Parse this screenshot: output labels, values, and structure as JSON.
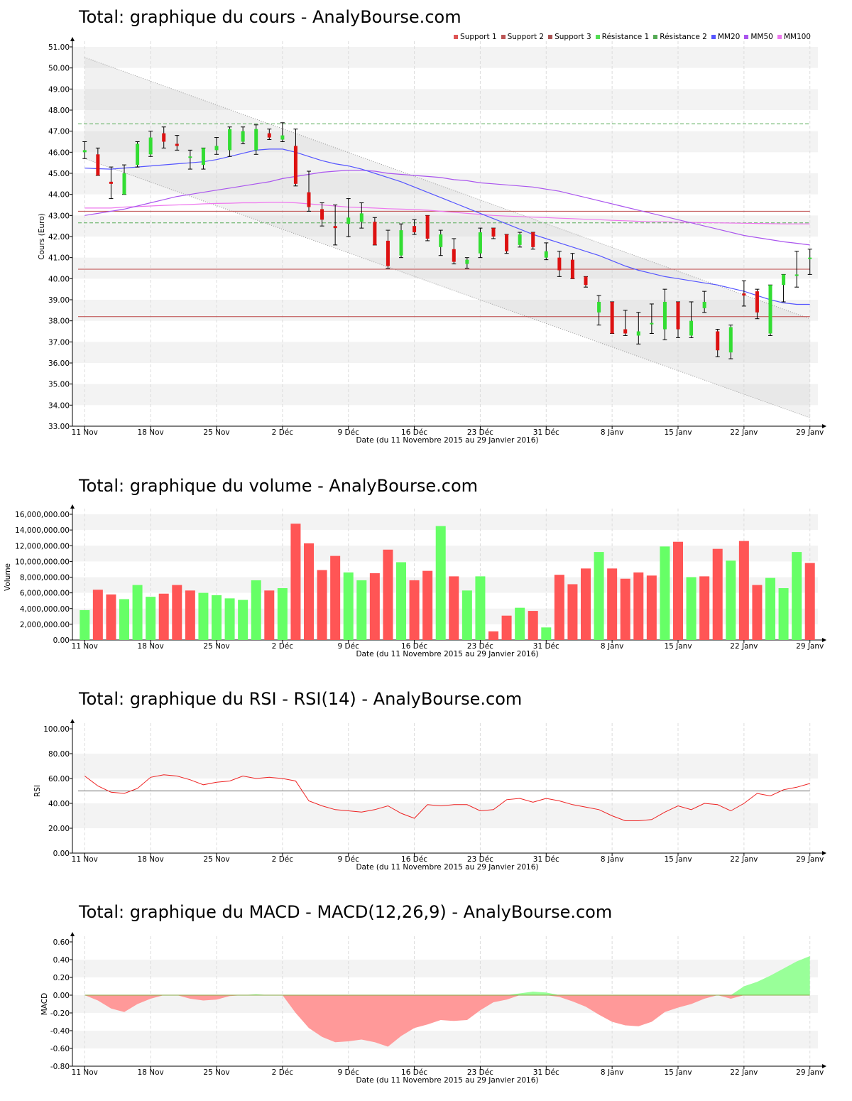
{
  "titles": {
    "price": "Total: graphique du cours - AnalyBourse.com",
    "volume": "Total: graphique du volume - AnalyBourse.com",
    "rsi": "Total: graphique du RSI - RSI(14) - AnalyBourse.com",
    "macd": "Total: graphique du MACD - MACD(12,26,9) - AnalyBourse.com"
  },
  "x_caption": "Date (du 11 Novembre 2015 au 29 Janvier 2016)",
  "x_ticks": [
    "11 Nov",
    "18 Nov",
    "25 Nov",
    "2 Déc",
    "9 Déc",
    "16 Déc",
    "23 Déc",
    "31 Déc",
    "8 Janv",
    "15 Janv",
    "22 Janv",
    "29 Janv"
  ],
  "x_tick_index": [
    0,
    5,
    10,
    15,
    20,
    25,
    30,
    35,
    40,
    45,
    50,
    55
  ],
  "colors": {
    "up": "#33dd33",
    "down": "#dd1111",
    "vol_up": "#66ff66",
    "vol_down": "#ff5555",
    "mm20": "#5555ff",
    "mm50": "#aa55ee",
    "mm100": "#ee77ee",
    "support": "#bb4444",
    "resistance": "#55aa55",
    "rsi": "#ee2222",
    "macd_neg": "#ff9999",
    "macd_pos": "#99ff99"
  },
  "legend": [
    {
      "label": "Support 1",
      "color": "#dd5555"
    },
    {
      "label": "Support 2",
      "color": "#bb5555"
    },
    {
      "label": "Support 3",
      "color": "#aa5555"
    },
    {
      "label": "Résistance 1",
      "color": "#55dd55"
    },
    {
      "label": "Résistance 2",
      "color": "#55aa55"
    },
    {
      "label": "MM20",
      "color": "#5555ff"
    },
    {
      "label": "MM50",
      "color": "#aa55ee"
    },
    {
      "label": "MM100",
      "color": "#ee77ee"
    }
  ],
  "chart_data": [
    {
      "type": "candlestick",
      "title": "Total: graphique du cours - AnalyBourse.com",
      "ylabel": "Cours (Euro)",
      "ylim": [
        33,
        51
      ],
      "yticks": [
        "33.00",
        "34.00",
        "35.00",
        "36.00",
        "37.00",
        "38.00",
        "39.00",
        "40.00",
        "41.00",
        "42.00",
        "43.00",
        "44.00",
        "45.00",
        "46.00",
        "47.00",
        "48.00",
        "49.00",
        "50.00",
        "51.00"
      ],
      "candles": [
        [
          46.0,
          46.5,
          45.7,
          46.1
        ],
        [
          45.9,
          46.2,
          44.9,
          44.9
        ],
        [
          44.6,
          45.3,
          43.8,
          44.5
        ],
        [
          44.0,
          45.4,
          44.1,
          45.0
        ],
        [
          45.4,
          46.5,
          45.3,
          46.4
        ],
        [
          45.9,
          47.0,
          45.8,
          46.7
        ],
        [
          46.9,
          47.2,
          46.2,
          46.5
        ],
        [
          46.4,
          46.8,
          46.1,
          46.3
        ],
        [
          45.8,
          46.1,
          45.2,
          45.8
        ],
        [
          45.4,
          46.2,
          45.2,
          46.2
        ],
        [
          46.1,
          46.7,
          45.9,
          46.3
        ],
        [
          46.1,
          47.2,
          45.8,
          47.1
        ],
        [
          46.5,
          47.2,
          46.4,
          47.0
        ],
        [
          46.1,
          47.3,
          45.9,
          47.1
        ],
        [
          46.9,
          47.1,
          46.6,
          46.7
        ],
        [
          46.6,
          47.4,
          46.5,
          46.8
        ],
        [
          46.3,
          47.1,
          44.4,
          44.5
        ],
        [
          44.1,
          45.1,
          43.2,
          43.4
        ],
        [
          43.3,
          43.6,
          42.5,
          42.8
        ],
        [
          42.5,
          43.5,
          41.6,
          42.4
        ],
        [
          42.6,
          43.8,
          42.0,
          42.9
        ],
        [
          42.7,
          43.6,
          42.4,
          43.1
        ],
        [
          42.7,
          42.9,
          41.6,
          41.6
        ],
        [
          41.8,
          42.3,
          40.5,
          40.6
        ],
        [
          41.1,
          42.6,
          41.0,
          42.3
        ],
        [
          42.5,
          42.8,
          42.1,
          42.2
        ],
        [
          43.0,
          42.9,
          41.8,
          41.9
        ],
        [
          41.5,
          42.3,
          41.1,
          42.1
        ],
        [
          41.4,
          41.9,
          40.7,
          40.8
        ],
        [
          40.7,
          41.0,
          40.5,
          40.9
        ],
        [
          41.2,
          42.4,
          41.0,
          42.2
        ],
        [
          42.4,
          42.4,
          41.9,
          42.0
        ],
        [
          42.1,
          42.1,
          41.2,
          41.3
        ],
        [
          41.6,
          42.2,
          41.5,
          42.1
        ],
        [
          42.2,
          42.2,
          41.4,
          41.5
        ],
        [
          41.0,
          41.7,
          40.9,
          41.3
        ],
        [
          41.0,
          41.3,
          40.1,
          40.4
        ],
        [
          40.9,
          41.2,
          40.0,
          40.0
        ],
        [
          40.1,
          40.1,
          39.6,
          39.7
        ],
        [
          38.4,
          39.2,
          37.8,
          38.9
        ],
        [
          38.9,
          38.9,
          37.4,
          37.4
        ],
        [
          37.6,
          38.5,
          37.3,
          37.4
        ],
        [
          37.3,
          38.4,
          36.9,
          37.5
        ],
        [
          37.9,
          38.8,
          37.4,
          37.9
        ],
        [
          37.6,
          39.5,
          37.1,
          38.9
        ],
        [
          38.9,
          38.9,
          37.2,
          37.6
        ],
        [
          37.3,
          38.9,
          37.2,
          38.0
        ],
        [
          38.6,
          39.4,
          38.4,
          38.9
        ],
        [
          37.5,
          37.6,
          36.3,
          36.6
        ],
        [
          36.5,
          37.8,
          36.2,
          37.7
        ],
        [
          39.3,
          39.9,
          38.7,
          39.2
        ],
        [
          39.4,
          39.5,
          38.1,
          38.4
        ],
        [
          37.4,
          39.7,
          37.3,
          39.7
        ],
        [
          39.7,
          40.2,
          38.9,
          40.2
        ],
        [
          40.2,
          41.3,
          39.6,
          40.2
        ],
        [
          41.0,
          41.4,
          40.2,
          41.0
        ]
      ],
      "mm20": [
        45.25,
        45.22,
        45.2,
        45.25,
        45.3,
        45.35,
        45.4,
        45.45,
        45.5,
        45.55,
        45.65,
        45.8,
        45.95,
        46.1,
        46.15,
        46.15,
        46.0,
        45.8,
        45.6,
        45.45,
        45.35,
        45.2,
        45.0,
        44.8,
        44.6,
        44.35,
        44.1,
        43.85,
        43.6,
        43.35,
        43.1,
        42.85,
        42.6,
        42.35,
        42.1,
        41.9,
        41.7,
        41.5,
        41.3,
        41.1,
        40.85,
        40.6,
        40.4,
        40.25,
        40.1,
        40.0,
        39.9,
        39.8,
        39.7,
        39.55,
        39.4,
        39.2,
        39.0,
        38.85,
        38.78,
        38.78
      ],
      "mm50": [
        43.0,
        43.1,
        43.2,
        43.3,
        43.45,
        43.6,
        43.75,
        43.9,
        44.0,
        44.1,
        44.2,
        44.3,
        44.4,
        44.5,
        44.6,
        44.75,
        44.85,
        44.95,
        45.05,
        45.1,
        45.15,
        45.15,
        45.1,
        45.0,
        44.95,
        44.9,
        44.85,
        44.8,
        44.7,
        44.65,
        44.55,
        44.5,
        44.45,
        44.4,
        44.35,
        44.25,
        44.15,
        44.0,
        43.85,
        43.7,
        43.55,
        43.4,
        43.25,
        43.1,
        42.95,
        42.8,
        42.65,
        42.5,
        42.35,
        42.2,
        42.05,
        41.95,
        41.85,
        41.75,
        41.68,
        41.6
      ],
      "mm100": [
        43.35,
        43.35,
        43.35,
        43.4,
        43.42,
        43.45,
        43.48,
        43.5,
        43.52,
        43.55,
        43.57,
        43.58,
        43.6,
        43.6,
        43.62,
        43.62,
        43.6,
        43.55,
        43.5,
        43.45,
        43.4,
        43.38,
        43.35,
        43.32,
        43.3,
        43.28,
        43.25,
        43.2,
        43.15,
        43.1,
        43.05,
        43.0,
        42.97,
        42.95,
        42.92,
        42.9,
        42.87,
        42.85,
        42.82,
        42.8,
        42.77,
        42.75,
        42.72,
        42.7,
        42.7,
        42.68,
        42.67,
        42.66,
        42.65,
        42.64,
        42.63,
        42.62,
        42.61,
        42.6,
        42.6,
        42.6
      ],
      "supports": [
        40.45,
        38.2,
        43.2
      ],
      "resistances": [
        47.35,
        42.65
      ],
      "channel_upper": [
        50.5,
        38.1
      ],
      "channel_lower": [
        45.7,
        33.4
      ]
    },
    {
      "type": "bar",
      "title": "Total: graphique du volume - AnalyBourse.com",
      "ylabel": "Volume",
      "ylim": [
        0,
        16000000
      ],
      "yticks": [
        "0.00",
        "2,000,000.00",
        "4,000,000.00",
        "6,000,000.00",
        "8,000,000.00",
        "10,000,000.00",
        "12,000,000.00",
        "14,000,000.00",
        "16,000,000.00"
      ],
      "values": [
        3800000,
        6400000,
        5800000,
        5200000,
        7000000,
        5500000,
        5900000,
        7000000,
        6300000,
        6000000,
        5700000,
        5300000,
        5100000,
        7600000,
        6300000,
        6600000,
        14800000,
        12300000,
        8900000,
        10700000,
        8600000,
        7600000,
        8500000,
        11500000,
        9900000,
        7600000,
        8800000,
        14500000,
        8100000,
        6300000,
        8100000,
        1100000,
        3100000,
        4100000,
        3700000,
        1600000,
        8300000,
        7100000,
        9100000,
        11200000,
        9100000,
        7800000,
        8600000,
        8200000,
        11900000,
        12500000,
        8000000,
        8100000,
        11600000,
        10100000,
        12600000,
        7000000,
        7900000,
        6600000,
        11200000,
        9800000
      ],
      "up": [
        1,
        0,
        0,
        1,
        1,
        1,
        0,
        0,
        0,
        1,
        1,
        1,
        1,
        1,
        0,
        1,
        0,
        0,
        0,
        0,
        1,
        1,
        0,
        0,
        1,
        0,
        0,
        1,
        0,
        1,
        1,
        0,
        0,
        1,
        0,
        1,
        0,
        0,
        0,
        1,
        0,
        0,
        0,
        0,
        1,
        0,
        1,
        0,
        0,
        1,
        0,
        0,
        1,
        1,
        1,
        0
      ]
    },
    {
      "type": "line",
      "title": "Total: graphique du RSI - RSI(14) - AnalyBourse.com",
      "ylabel": "RSI",
      "ylim": [
        0,
        100
      ],
      "yticks": [
        "0.00",
        "20.00",
        "40.00",
        "60.00",
        "80.00",
        "100.00"
      ],
      "reference": 50,
      "values": [
        62,
        54,
        49,
        48,
        52,
        61,
        63,
        62,
        59,
        55,
        57,
        58,
        62,
        60,
        61,
        60,
        58,
        42,
        38,
        35,
        34,
        33,
        35,
        38,
        32,
        28,
        39,
        38,
        39,
        39,
        34,
        35,
        43,
        44,
        41,
        44,
        42,
        39,
        37,
        35,
        30,
        26,
        26,
        27,
        33,
        38,
        35,
        40,
        39,
        34,
        40,
        48,
        46,
        51,
        53,
        56
      ]
    },
    {
      "type": "area",
      "title": "Total: graphique du MACD - MACD(12,26,9) - AnalyBourse.com",
      "ylabel": "MACD",
      "ylim": [
        -0.8,
        0.6
      ],
      "yticks": [
        "-0.80",
        "-0.60",
        "-0.40",
        "-0.20",
        "0.00",
        "0.20",
        "0.40",
        "0.60"
      ],
      "values": [
        0.0,
        -0.06,
        -0.15,
        -0.19,
        -0.1,
        -0.04,
        0.0,
        0.0,
        -0.04,
        -0.06,
        -0.05,
        -0.01,
        0.0,
        0.01,
        0.0,
        0.0,
        -0.2,
        -0.37,
        -0.47,
        -0.53,
        -0.52,
        -0.5,
        -0.53,
        -0.58,
        -0.46,
        -0.37,
        -0.33,
        -0.28,
        -0.29,
        -0.28,
        -0.17,
        -0.08,
        -0.05,
        0.02,
        0.04,
        0.03,
        -0.02,
        -0.07,
        -0.13,
        -0.22,
        -0.3,
        -0.34,
        -0.35,
        -0.3,
        -0.19,
        -0.14,
        -0.1,
        -0.04,
        0.0,
        -0.04,
        0.1,
        0.15,
        0.22,
        0.3,
        0.38,
        0.44
      ]
    }
  ]
}
